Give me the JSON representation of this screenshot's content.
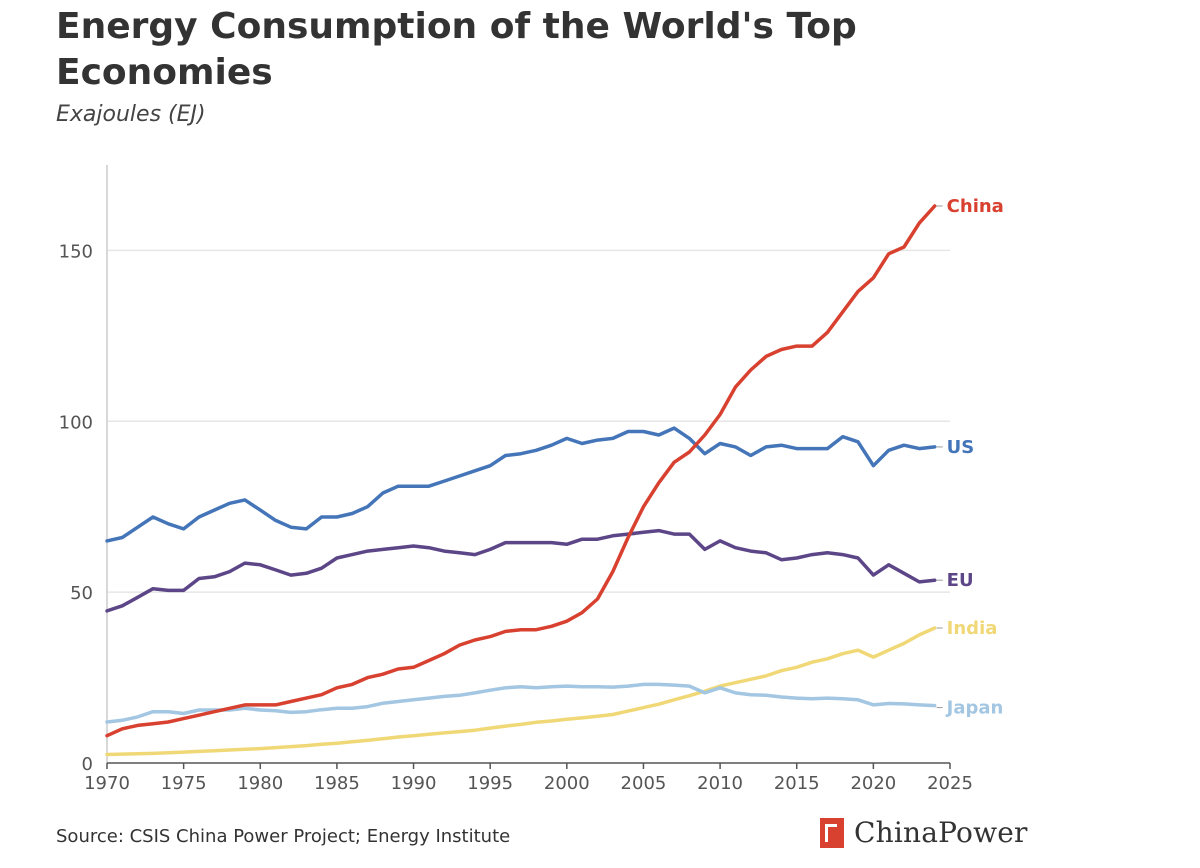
{
  "header": {
    "title": "Energy Consumption of the World's Top Economies",
    "subtitle": "Exajoules (EJ)"
  },
  "footer": {
    "source": "Source: CSIS China Power Project; Energy Institute",
    "brand": "ChinaPower"
  },
  "colors": {
    "China": "#d8402f",
    "US": "#4475b8",
    "EU": "#5c4687",
    "India": "#f1d877",
    "Japan": "#a3c6e2",
    "grid": "#e6e6e6",
    "axis": "#555555"
  },
  "chart_data": {
    "type": "line",
    "title": "Energy Consumption of the World's Top Economies",
    "subtitle": "Exajoules (EJ)",
    "xlabel": "",
    "ylabel": "",
    "xlim": [
      1970,
      2025
    ],
    "ylim": [
      0,
      175
    ],
    "xticks": [
      1970,
      1975,
      1980,
      1985,
      1990,
      1995,
      2000,
      2005,
      2010,
      2015,
      2020,
      2025
    ],
    "yticks": [
      0,
      50,
      100,
      150
    ],
    "grid": "horizontal",
    "legend": "end-of-line labels",
    "x": [
      1970,
      1971,
      1972,
      1973,
      1974,
      1975,
      1976,
      1977,
      1978,
      1979,
      1980,
      1981,
      1982,
      1983,
      1984,
      1985,
      1986,
      1987,
      1988,
      1989,
      1990,
      1991,
      1992,
      1993,
      1994,
      1995,
      1996,
      1997,
      1998,
      1999,
      2000,
      2001,
      2002,
      2003,
      2004,
      2005,
      2006,
      2007,
      2008,
      2009,
      2010,
      2011,
      2012,
      2013,
      2014,
      2015,
      2016,
      2017,
      2018,
      2019,
      2020,
      2021,
      2022,
      2023,
      2024
    ],
    "series": [
      {
        "name": "China",
        "values": [
          8,
          10,
          11,
          11.5,
          12,
          13,
          14,
          15,
          16,
          17,
          17,
          17,
          18,
          19,
          20,
          22,
          23,
          25,
          26,
          27.5,
          28,
          30,
          32,
          34.5,
          36,
          37,
          38.5,
          39,
          39,
          40,
          41.5,
          44,
          48,
          56,
          66,
          75,
          82,
          88,
          91,
          96,
          102,
          110,
          115,
          119,
          121,
          122,
          122,
          126,
          132,
          138,
          142,
          149,
          151,
          158,
          163
        ]
      },
      {
        "name": "US",
        "values": [
          65,
          66,
          69,
          72,
          70,
          68.5,
          72,
          74,
          76,
          77,
          74,
          71,
          69,
          68.5,
          72,
          72,
          73,
          75,
          79,
          81,
          81,
          81,
          82.5,
          84,
          85.5,
          87,
          90,
          90.5,
          91.5,
          93,
          95,
          93.5,
          94.5,
          95,
          97,
          97,
          96,
          98,
          95,
          90.5,
          93.5,
          92.5,
          90,
          92.5,
          93,
          92,
          92,
          92,
          95.5,
          94,
          87,
          91.5,
          93,
          92,
          92.5
        ]
      },
      {
        "name": "EU",
        "values": [
          44.5,
          46,
          48.5,
          51,
          50.5,
          50.5,
          54,
          54.5,
          56,
          58.5,
          58,
          56.5,
          55,
          55.5,
          57,
          60,
          61,
          62,
          62.5,
          63,
          63.5,
          63,
          62,
          61.5,
          61,
          62.5,
          64.5,
          64.5,
          64.5,
          64.5,
          64,
          65.5,
          65.5,
          66.5,
          67,
          67.5,
          68,
          67,
          67,
          62.5,
          65,
          63,
          62,
          61.5,
          59.5,
          60,
          61,
          61.5,
          61,
          60,
          55,
          58,
          55.5,
          53,
          53.5
        ]
      },
      {
        "name": "India",
        "values": [
          2.5,
          2.6,
          2.7,
          2.8,
          3,
          3.2,
          3.4,
          3.6,
          3.8,
          4,
          4.2,
          4.5,
          4.8,
          5.1,
          5.5,
          5.8,
          6.2,
          6.6,
          7.1,
          7.6,
          8,
          8.4,
          8.8,
          9.2,
          9.6,
          10.2,
          10.8,
          11.3,
          11.9,
          12.3,
          12.8,
          13.2,
          13.7,
          14.2,
          15.2,
          16.2,
          17.2,
          18.5,
          19.7,
          21,
          22.5,
          23.5,
          24.5,
          25.5,
          27,
          28,
          29.5,
          30.5,
          32,
          33,
          31,
          33,
          35,
          37.5,
          39.5
        ]
      },
      {
        "name": "Japan",
        "values": [
          12,
          12.5,
          13.5,
          15,
          15,
          14.5,
          15.5,
          15.5,
          15.5,
          16,
          15.5,
          15.3,
          14.8,
          15,
          15.6,
          16,
          16,
          16.5,
          17.5,
          18,
          18.5,
          19,
          19.5,
          19.8,
          20.5,
          21.3,
          22,
          22.3,
          22,
          22.3,
          22.5,
          22.3,
          22.3,
          22.2,
          22.5,
          23,
          23,
          22.8,
          22.5,
          20.5,
          22,
          20.5,
          20,
          19.8,
          19.3,
          19,
          18.8,
          19,
          18.8,
          18.5,
          17,
          17.4,
          17.3,
          17,
          16.8
        ]
      }
    ]
  }
}
